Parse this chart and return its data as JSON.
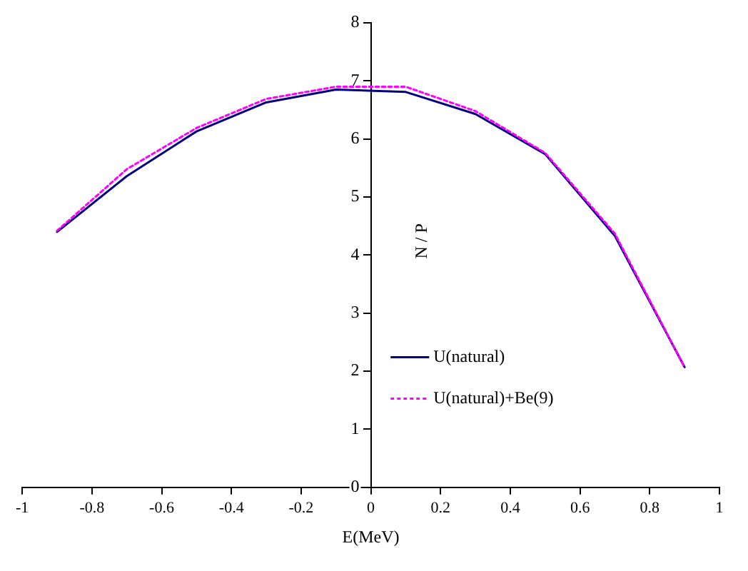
{
  "chart_data": {
    "type": "line",
    "xlabel": "E(MeV)",
    "ylabel": "N / P",
    "x": [
      -0.9,
      -0.7,
      -0.5,
      -0.3,
      -0.1,
      0.1,
      0.3,
      0.5,
      0.7,
      0.9
    ],
    "series": [
      {
        "name": "U(natural)",
        "color": "#000080",
        "line_style": "solid",
        "values": [
          4.4,
          5.36,
          6.13,
          6.63,
          6.85,
          6.81,
          6.43,
          5.74,
          4.33,
          2.07
        ]
      },
      {
        "name": "U(natural)+Be(9)",
        "color": "#ff00ff",
        "line_style": "dotted",
        "values": [
          4.42,
          5.48,
          6.19,
          6.69,
          6.9,
          6.9,
          6.48,
          5.76,
          4.37,
          2.07
        ]
      }
    ],
    "xlim": [
      -1,
      1
    ],
    "xticks": [
      -1,
      -0.8,
      -0.6,
      -0.4,
      -0.2,
      0,
      0.2,
      0.4,
      0.6,
      0.8,
      1
    ],
    "ylim": [
      0,
      8
    ],
    "yticks": [
      0,
      1,
      2,
      3,
      4,
      5,
      6,
      7,
      8
    ],
    "grid": false,
    "legend": "bottom right",
    "marker": "none"
  }
}
